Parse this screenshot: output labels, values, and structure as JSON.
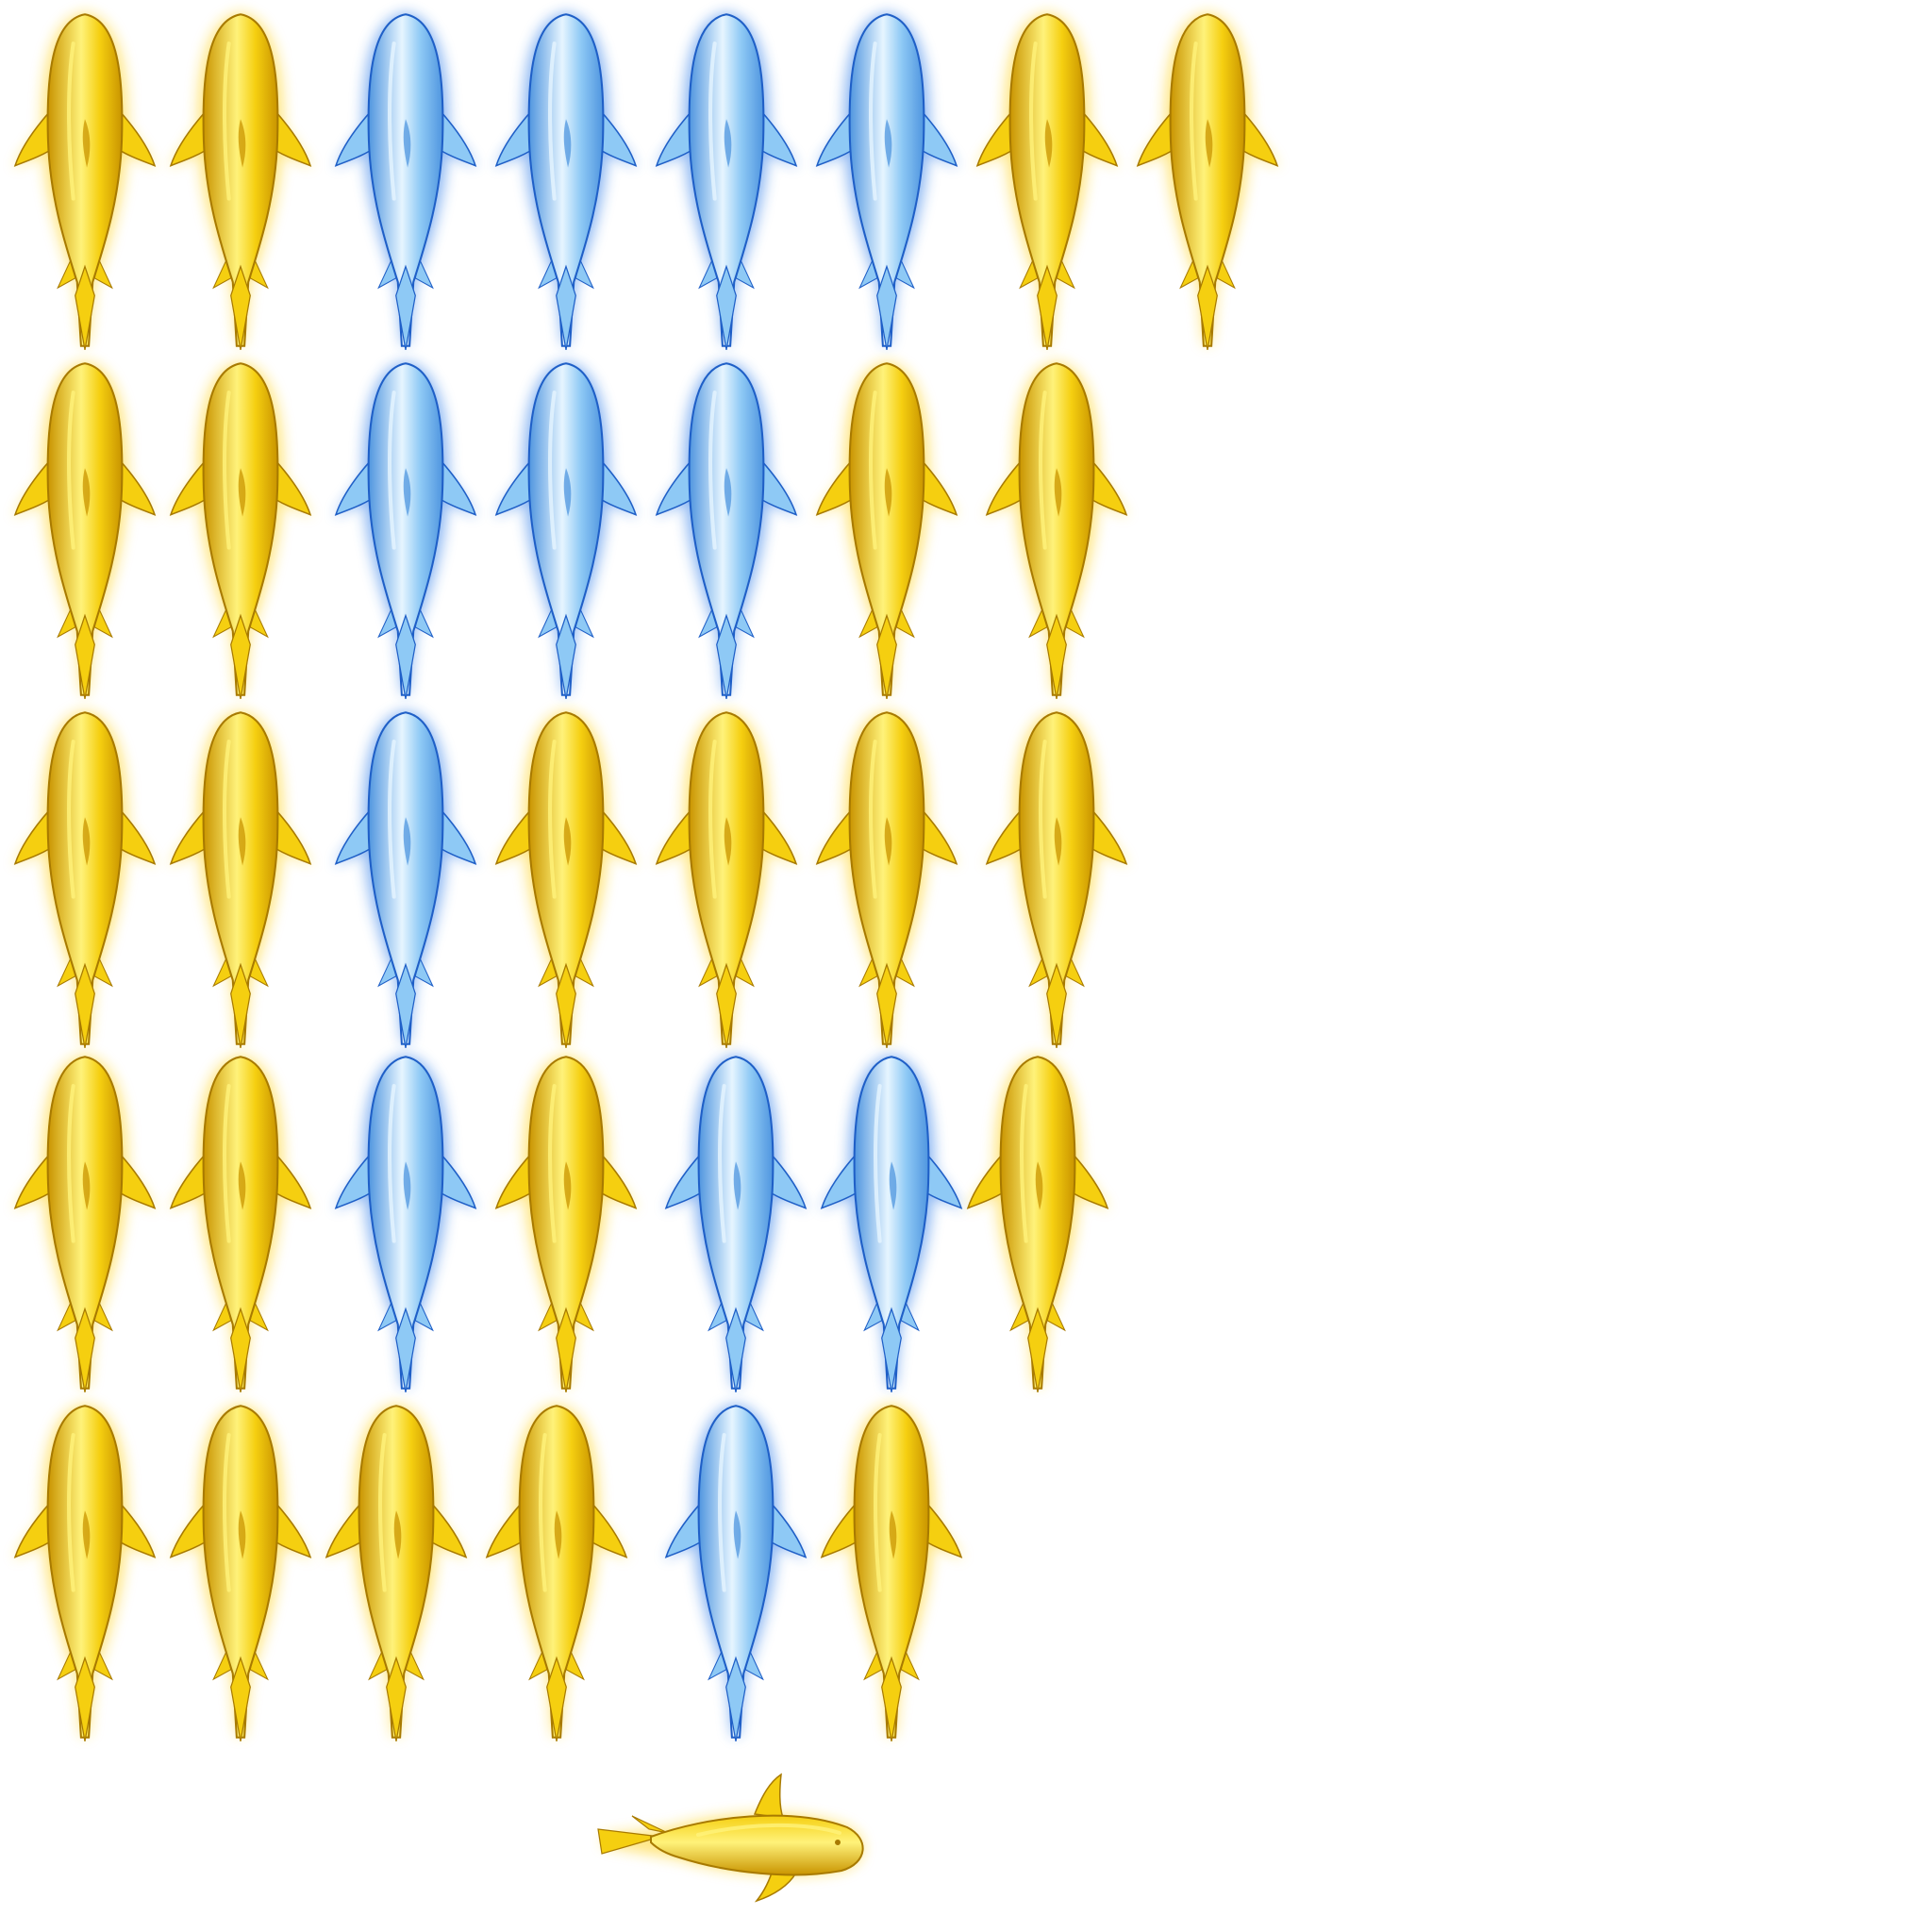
{
  "sprite_sheet": {
    "background": "#ffffff",
    "colors": {
      "gold": {
        "glow": "#ffd21a",
        "light": "#fff27a",
        "mid": "#f5cf10",
        "dark": "#c99400",
        "edge": "#a87a00"
      },
      "blue": {
        "glow": "#2f7de8",
        "light": "#e6f5ff",
        "mid": "#8ec9f5",
        "dark": "#4f95df",
        "edge": "#1f5fc7"
      }
    },
    "rows": [
      [
        "gold",
        "gold",
        "blue",
        "blue",
        "blue",
        "blue",
        "gold",
        "gold"
      ],
      [
        "gold",
        "gold",
        "blue",
        "blue",
        "blue",
        "gold",
        "gold"
      ],
      [
        "gold",
        "gold",
        "blue",
        "gold",
        "gold",
        "gold",
        "gold"
      ],
      [
        "gold",
        "gold",
        "blue",
        "gold",
        "blue",
        "blue",
        "gold"
      ],
      [
        "gold",
        "gold",
        "gold",
        "gold",
        "blue",
        "gold"
      ]
    ],
    "extra_frames": [
      {
        "variant": "gold",
        "orientation": "horizontal"
      }
    ],
    "frame_count": 36
  }
}
